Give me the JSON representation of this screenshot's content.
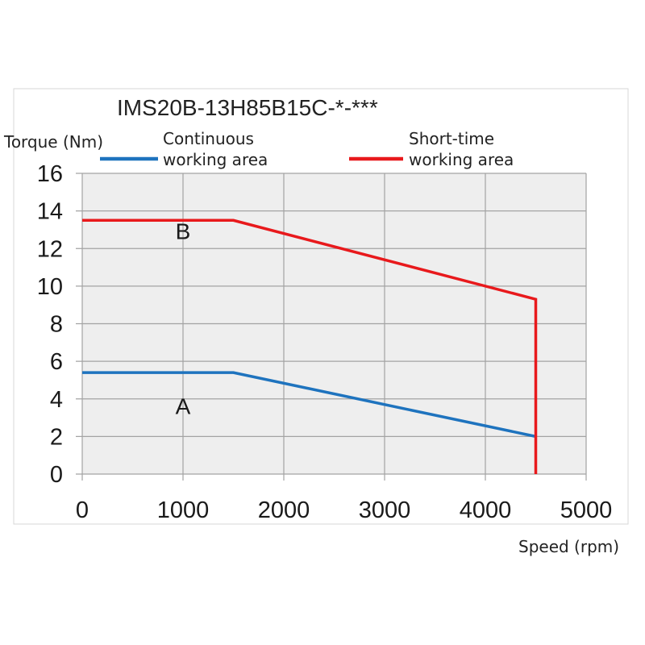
{
  "chart_data": {
    "type": "line",
    "title": "IMS20B-13H85B15C-*-***",
    "xlabel": "Speed (rpm)",
    "ylabel": "Torque (Nm)",
    "xlim": [
      0,
      5000
    ],
    "ylim": [
      0,
      16
    ],
    "x_ticks": [
      "0",
      "1000",
      "2000",
      "3000",
      "4000",
      "5000"
    ],
    "y_ticks": [
      "0",
      "2",
      "4",
      "6",
      "8",
      "10",
      "12",
      "14",
      "16"
    ],
    "grid": true,
    "legend_position": "top",
    "series": [
      {
        "name": "Continuous\nworking area",
        "name_lines": [
          "Continuous",
          "working area"
        ],
        "color": "#1e73be",
        "points": [
          [
            0,
            5.4
          ],
          [
            1500,
            5.4
          ],
          [
            4500,
            2.0
          ]
        ]
      },
      {
        "name": "Short-time\nworking area",
        "name_lines": [
          "Short-time",
          "working area"
        ],
        "color": "#e8191c",
        "points": [
          [
            0,
            13.5
          ],
          [
            1500,
            13.5
          ],
          [
            4500,
            9.3
          ],
          [
            4500,
            0
          ]
        ]
      }
    ],
    "annotations": [
      {
        "text": "B",
        "x": 1000,
        "y": 12.5
      },
      {
        "text": "A",
        "x": 1000,
        "y": 3.2
      }
    ]
  }
}
